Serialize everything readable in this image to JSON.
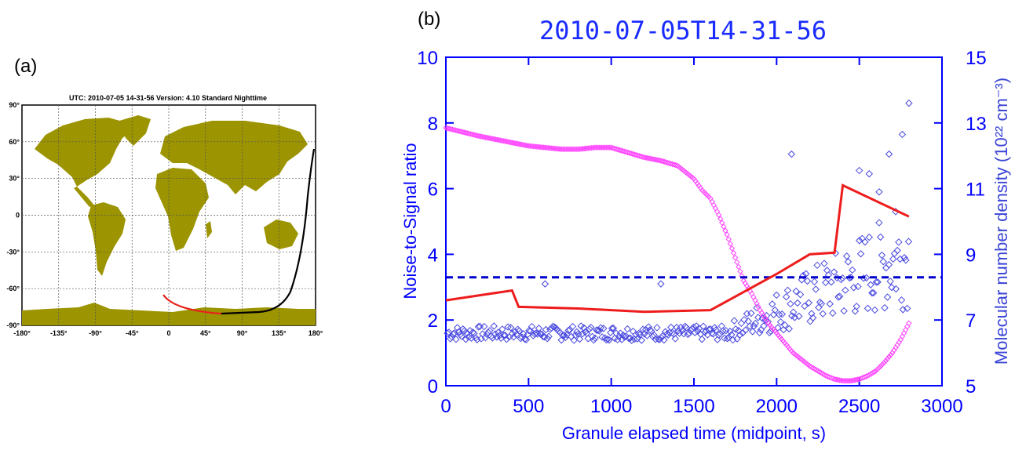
{
  "panel_a": {
    "label": "(a)",
    "header": "UTC: 2010-07-05  14-31-56    Version: 4.10  Standard    Nighttime",
    "x_ticks": [
      "-180°",
      "-135°",
      "-90°",
      "-45°",
      "0",
      "45°",
      "90°",
      "135°",
      "180°"
    ],
    "y_ticks": [
      "90°",
      "60°",
      "30°",
      "0",
      "-30°",
      "-60°",
      "-90°"
    ],
    "land_color": "#9c9400",
    "track_day_color": "#e8231b",
    "track_night_color": "#000000"
  },
  "panel_b": {
    "label": "(b)"
  },
  "colors": {
    "title": "#1a2bff",
    "axis": "#0000ff",
    "right_axis_label": "#3b45d6",
    "red_line": "#ee1c1c",
    "diamond_blue": "#4848e0",
    "diamond_magenta": "#ff44ff",
    "dashed": "#0000cc"
  },
  "chart_data": {
    "type": "scatter",
    "title": "2010-07-05T14-31-56",
    "xlabel": "Granule elapsed time (midpoint, s)",
    "ylabel": "Noise-to-Signal ratio",
    "ylabel_right": "Molecular number density (10²² cm⁻³)",
    "xlim": [
      0,
      3000
    ],
    "ylim": [
      0,
      10
    ],
    "ylim_right": [
      5,
      15
    ],
    "x_ticks": [
      0,
      500,
      1000,
      1500,
      2000,
      2500,
      3000
    ],
    "y_ticks": [
      0,
      2,
      4,
      6,
      8,
      10
    ],
    "y_ticks_right": [
      5,
      7,
      9,
      11,
      13,
      15
    ],
    "threshold": 3.3,
    "series": [
      {
        "marker": "line",
        "axis": "left",
        "x": [
          0,
          400,
          440,
          800,
          1200,
          1600,
          2000,
          2200,
          2350,
          2400,
          2800
        ],
        "y": [
          2.6,
          2.9,
          2.4,
          2.35,
          2.25,
          2.3,
          3.4,
          4.0,
          4.05,
          6.1,
          5.15
        ]
      },
      {
        "marker": "diamond",
        "axis": "right",
        "x": [
          0,
          200,
          400,
          500,
          600,
          700,
          800,
          900,
          1000,
          1100,
          1200,
          1300,
          1400,
          1500,
          1550,
          1600,
          1650,
          1700,
          1750,
          1800,
          1850,
          1900,
          1950,
          2000,
          2050,
          2100,
          2150,
          2200,
          2250,
          2300,
          2350,
          2400,
          2450,
          2500,
          2550,
          2600,
          2650,
          2700,
          2750,
          2800
        ],
        "y": [
          12.85,
          12.6,
          12.4,
          12.3,
          12.25,
          12.2,
          12.2,
          12.25,
          12.25,
          12.1,
          11.95,
          11.85,
          11.7,
          11.3,
          10.95,
          10.7,
          10.2,
          9.6,
          8.9,
          8.2,
          7.8,
          7.3,
          6.9,
          6.6,
          6.3,
          6.0,
          5.8,
          5.6,
          5.45,
          5.3,
          5.2,
          5.15,
          5.15,
          5.2,
          5.3,
          5.45,
          5.7,
          6.0,
          6.4,
          6.9
        ]
      }
    ]
  }
}
